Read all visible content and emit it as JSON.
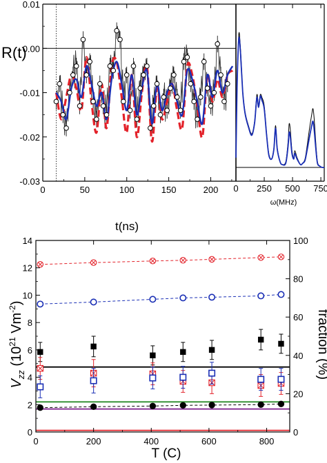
{
  "chart_data": [
    {
      "type": "line",
      "ylabel": "R(t)",
      "xlabel": "t(ns)",
      "xlim": [
        0,
        230
      ],
      "ylim": [
        -0.03,
        0.01
      ],
      "x_ticks": [
        0,
        50,
        100,
        150,
        200
      ],
      "x_tick_labels": [
        "0",
        "50",
        "100",
        "150",
        "200"
      ],
      "y_ticks": [
        0.01,
        0.0,
        -0.01,
        -0.02,
        -0.03
      ],
      "y_tick_labels": [
        "0.01",
        "0.00",
        "-0.01",
        "-0.02",
        "-0.03"
      ],
      "reference_lines": {
        "horizontal_y": 0.0,
        "dotted_vertical_x": 16
      },
      "series": [
        {
          "kind": "data-points",
          "color": "#000000",
          "x": [
            16,
            20,
            24,
            28,
            32,
            36,
            40,
            44,
            48,
            52,
            56,
            60,
            64,
            68,
            72,
            76,
            80,
            84,
            88,
            92,
            96,
            100,
            104,
            108,
            112,
            116,
            120,
            124,
            128,
            132,
            136,
            140,
            144,
            148,
            152,
            156,
            160,
            164,
            168,
            172,
            176,
            180,
            184,
            188,
            192,
            196,
            200,
            204,
            208,
            212,
            216,
            220
          ],
          "y": [
            -0.012,
            -0.008,
            -0.015,
            -0.018,
            -0.01,
            -0.006,
            -0.004,
            -0.013,
            0.002,
            -0.006,
            -0.003,
            -0.012,
            -0.016,
            -0.008,
            -0.013,
            -0.015,
            -0.004,
            -0.005,
            0.004,
            0.002,
            -0.012,
            -0.006,
            -0.014,
            -0.004,
            -0.016,
            -0.009,
            -0.006,
            -0.004,
            -0.018,
            -0.013,
            -0.008,
            -0.015,
            -0.011,
            -0.014,
            -0.009,
            -0.006,
            -0.011,
            -0.014,
            -0.003,
            -0.002,
            -0.008,
            -0.012,
            -0.016,
            -0.011,
            -0.003,
            -0.009,
            -0.013,
            -0.01,
            0.001,
            -0.006,
            -0.012,
            -0.008
          ]
        },
        {
          "kind": "fit",
          "color": "#1a2fb5",
          "x": [
            16,
            22,
            28,
            34,
            40,
            46,
            52,
            58,
            64,
            70,
            76,
            82,
            88,
            94,
            100,
            106,
            112,
            118,
            124,
            130,
            136,
            142,
            148,
            154,
            160,
            166,
            172,
            178,
            184,
            190,
            196,
            202,
            208,
            214,
            220,
            226
          ],
          "y": [
            -0.01,
            -0.012,
            -0.016,
            -0.009,
            -0.007,
            -0.011,
            -0.004,
            -0.008,
            -0.013,
            -0.01,
            -0.016,
            -0.007,
            -0.003,
            -0.008,
            -0.014,
            -0.006,
            -0.015,
            -0.009,
            -0.005,
            -0.017,
            -0.008,
            -0.014,
            -0.01,
            -0.008,
            -0.012,
            -0.015,
            -0.005,
            -0.007,
            -0.012,
            -0.017,
            -0.006,
            -0.011,
            -0.005,
            -0.01,
            -0.006,
            -0.004
          ]
        },
        {
          "kind": "model-dashed",
          "color": "#e3222a",
          "x": [
            16,
            22,
            28,
            34,
            40,
            46,
            52,
            58,
            64,
            70,
            76,
            82,
            88,
            94,
            100,
            106,
            112,
            118,
            124,
            130,
            136,
            142,
            148,
            154,
            160,
            166,
            172,
            178,
            184,
            190,
            196,
            202,
            208,
            214,
            220,
            226
          ],
          "y": [
            -0.01,
            -0.016,
            -0.011,
            -0.006,
            -0.009,
            -0.014,
            -0.002,
            -0.012,
            -0.019,
            -0.008,
            -0.018,
            -0.004,
            -0.003,
            -0.011,
            -0.019,
            -0.006,
            -0.02,
            -0.01,
            -0.004,
            -0.021,
            -0.009,
            -0.016,
            -0.012,
            -0.008,
            -0.014,
            -0.018,
            -0.004,
            -0.006,
            -0.013,
            -0.02,
            -0.006,
            -0.012,
            -0.007,
            -0.011,
            -0.006,
            -0.005
          ]
        }
      ]
    },
    {
      "type": "line",
      "xlabel": "ω(MHz)",
      "xlim": [
        0,
        780
      ],
      "x_ticks": [
        0,
        250,
        500,
        750
      ],
      "x_tick_labels": [
        "0",
        "250",
        "500",
        "750"
      ],
      "series": [
        {
          "kind": "spectrum",
          "color": "#000000",
          "x": [
            0,
            10,
            25,
            40,
            60,
            80,
            110,
            140,
            165,
            185,
            200,
            215,
            230,
            250,
            270,
            290,
            315,
            335,
            350,
            365,
            390,
            410,
            440,
            460,
            470,
            480,
            495,
            510,
            520,
            540,
            570,
            590,
            610,
            630,
            650,
            670,
            680,
            690,
            705,
            720,
            740,
            760,
            780
          ],
          "y": [
            0.07,
            0.55,
            0.95,
            0.85,
            0.55,
            0.4,
            0.3,
            0.24,
            0.33,
            0.52,
            0.44,
            0.52,
            0.5,
            0.44,
            0.25,
            0.1,
            0.06,
            0.14,
            0.3,
            0.14,
            0.04,
            0.02,
            0.04,
            0.18,
            0.31,
            0.27,
            0.12,
            0.07,
            0.12,
            0.07,
            0.02,
            0.03,
            0.06,
            0.16,
            0.28,
            0.38,
            0.42,
            0.36,
            0.18,
            0.04,
            0.01,
            0.0,
            0.0
          ]
        },
        {
          "kind": "spectrum-fit",
          "color": "#1a2fb5",
          "x": [
            0,
            10,
            25,
            40,
            60,
            80,
            110,
            140,
            165,
            185,
            200,
            215,
            230,
            250,
            270,
            290,
            315,
            335,
            350,
            365,
            390,
            410,
            440,
            460,
            470,
            480,
            495,
            510,
            520,
            540,
            570,
            590,
            610,
            630,
            650,
            670,
            680,
            690,
            705,
            720,
            740,
            760,
            780
          ],
          "y": [
            0.07,
            0.57,
            0.92,
            0.82,
            0.54,
            0.39,
            0.29,
            0.23,
            0.32,
            0.5,
            0.43,
            0.51,
            0.48,
            0.42,
            0.24,
            0.09,
            0.06,
            0.13,
            0.28,
            0.13,
            0.04,
            0.02,
            0.03,
            0.15,
            0.25,
            0.22,
            0.1,
            0.06,
            0.1,
            0.06,
            0.02,
            0.03,
            0.05,
            0.13,
            0.22,
            0.3,
            0.33,
            0.28,
            0.14,
            0.03,
            0.01,
            0.0,
            0.0
          ]
        }
      ]
    },
    {
      "type": "scatter",
      "xlabel": "T (C)",
      "ylabel": "V_zz (10^21 Vm^-2)",
      "ylabel_parts": {
        "v": "V",
        "sub": "zz",
        "open": " (10",
        "exp": "21",
        "mid": " Vm",
        "exp2": "-2",
        "close": ")"
      },
      "ylabel_right": "fraction (%)",
      "xlim": [
        0,
        880
      ],
      "ylim": [
        0,
        14
      ],
      "ylim_right": [
        0,
        100
      ],
      "x_ticks": [
        0,
        200,
        400,
        600,
        800
      ],
      "x_tick_labels": [
        "0",
        "200",
        "400",
        "600",
        "800"
      ],
      "y_ticks": [
        0,
        2,
        4,
        6,
        8,
        10,
        12,
        14
      ],
      "y_tick_labels": [
        "0",
        "2",
        "4",
        "6",
        "8",
        "10",
        "12",
        "14"
      ],
      "y_right_ticks": [
        0,
        20,
        40,
        60,
        80,
        100
      ],
      "y_right_tick_labels": [
        "0",
        "20",
        "40",
        "60",
        "80",
        "100"
      ],
      "horizontal_lines": [
        {
          "y": 4.75,
          "color": "#000000"
        },
        {
          "y": 2.2,
          "color": "#2a8c2a"
        },
        {
          "y": 1.68,
          "color": "#7a1a8a"
        },
        {
          "y": 0.12,
          "color": "#e3222a"
        }
      ],
      "series": [
        {
          "kind": "crossed-circle-dashed",
          "color": "#e3222a",
          "x": [
            15,
            200,
            405,
            510,
            610,
            780,
            850
          ],
          "y": [
            12.25,
            12.38,
            12.5,
            12.55,
            12.62,
            12.75,
            12.8
          ]
        },
        {
          "kind": "open-circle-dashed",
          "color": "#1a2fb5",
          "x": [
            15,
            200,
            405,
            510,
            610,
            780,
            850
          ],
          "y": [
            9.35,
            9.5,
            9.7,
            9.8,
            9.85,
            9.95,
            10.05
          ]
        },
        {
          "kind": "filled-square",
          "color": "#000000",
          "x": [
            15,
            200,
            405,
            510,
            610,
            780,
            850
          ],
          "y": [
            5.85,
            6.25,
            5.6,
            5.85,
            6.0,
            6.75,
            6.45
          ],
          "err": [
            0.7,
            0.75,
            0.7,
            0.7,
            0.7,
            0.75,
            0.7
          ]
        },
        {
          "kind": "crossed-square",
          "color": "#e3222a",
          "x": [
            15,
            200,
            405,
            510,
            610,
            780,
            850
          ],
          "y": [
            4.65,
            4.3,
            4.25,
            3.7,
            3.6,
            3.4,
            3.55
          ],
          "err": [
            0.8,
            1.0,
            0.8,
            0.8,
            0.8,
            0.8,
            0.8
          ]
        },
        {
          "kind": "open-square",
          "color": "#1a2fb5",
          "x": [
            15,
            200,
            405,
            510,
            610,
            780,
            850
          ],
          "y": [
            3.3,
            3.75,
            3.95,
            4.0,
            4.3,
            3.85,
            3.85
          ],
          "err": [
            0.8,
            0.9,
            0.8,
            0.8,
            0.8,
            0.8,
            0.8
          ]
        },
        {
          "kind": "filled-circle-dashed",
          "color": "#000000",
          "x": [
            15,
            200,
            405,
            510,
            610,
            780,
            850
          ],
          "y": [
            1.78,
            1.85,
            1.9,
            1.95,
            1.97,
            2.0,
            2.05
          ]
        }
      ]
    }
  ]
}
